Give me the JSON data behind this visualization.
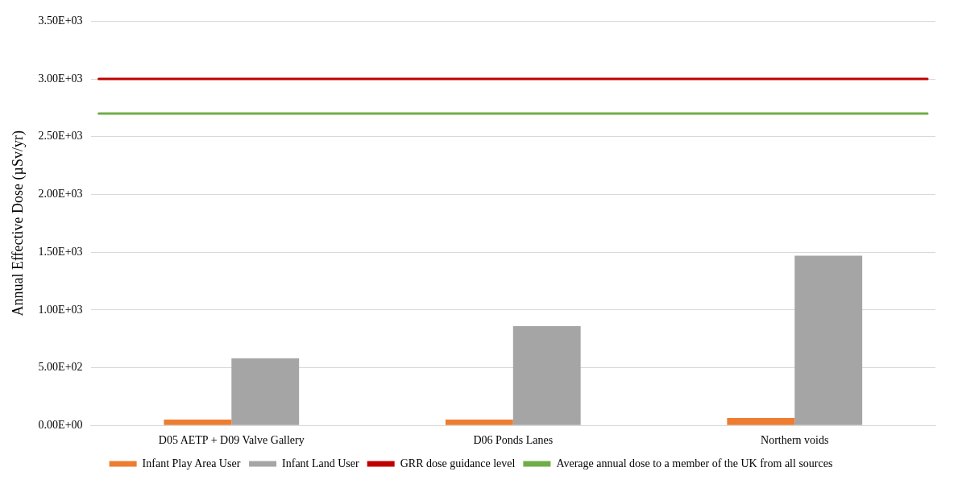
{
  "chart_data": {
    "type": "bar",
    "ylabel": "Annual Effective Dose (µSv/yr)",
    "categories": [
      "D05 AETP + D09 Valve Gallery",
      "D06 Ponds Lanes",
      "Northern voids"
    ],
    "series": [
      {
        "name": "Infant Play Area User",
        "color": "#ed7d31",
        "values": [
          50,
          50,
          65
        ]
      },
      {
        "name": "Infant Land User",
        "color": "#a5a5a5",
        "values": [
          580,
          860,
          1470
        ]
      }
    ],
    "ref_lines": [
      {
        "axis": "y",
        "value": 3000,
        "label": "GRR dose guidance level",
        "color": "#c00000"
      },
      {
        "axis": "y",
        "value": 2700,
        "label": "Average annual dose to a member of the UK from all sources",
        "color": "#70ad47"
      }
    ],
    "ylim": [
      0,
      3500
    ],
    "yticks": [
      {
        "value": 0,
        "label": "0.00E+00"
      },
      {
        "value": 500,
        "label": "5.00E+02"
      },
      {
        "value": 1000,
        "label": "1.00E+03"
      },
      {
        "value": 1500,
        "label": "1.50E+03"
      },
      {
        "value": 2000,
        "label": "2.00E+03"
      },
      {
        "value": 2500,
        "label": "2.50E+03"
      },
      {
        "value": 3000,
        "label": "3.00E+03"
      },
      {
        "value": 3500,
        "label": "3.50E+03"
      }
    ],
    "grid": "y",
    "legend": "bottom"
  }
}
